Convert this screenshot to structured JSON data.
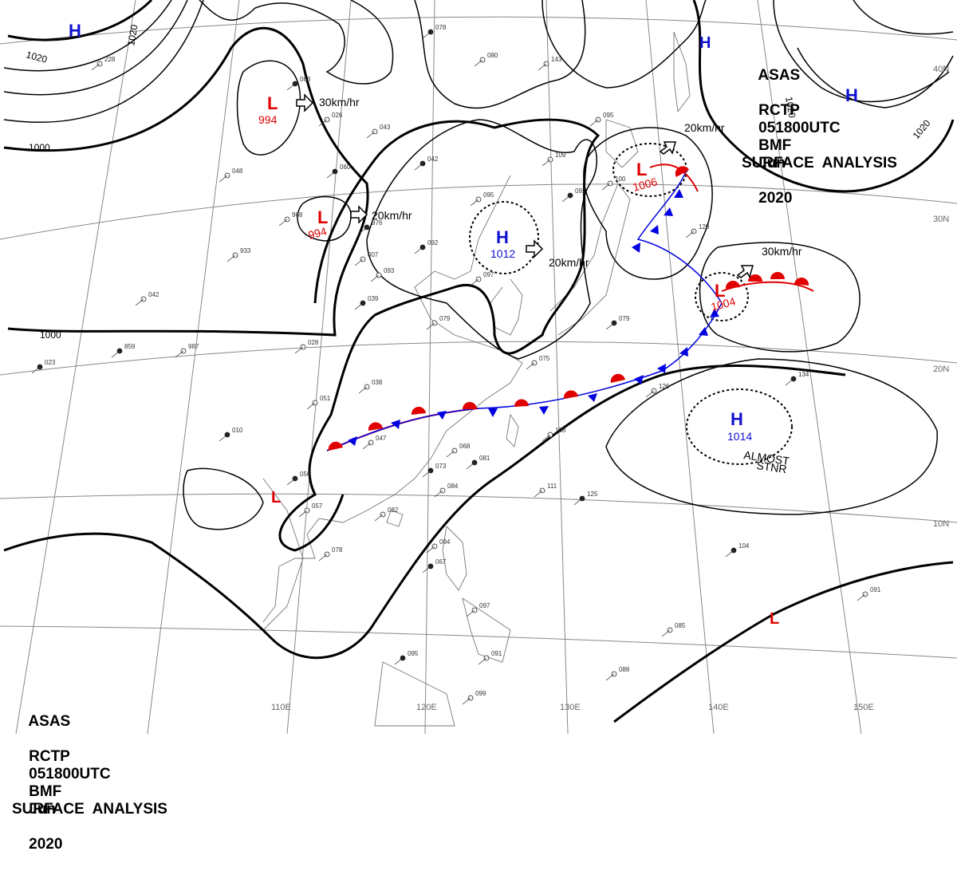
{
  "header": {
    "line1": [
      "ASAS",
      "RCTP",
      "BMF"
    ],
    "line2": [
      "051800UTC",
      "Jun",
      "2020"
    ],
    "line3": "SURFACE  ANALYSIS"
  },
  "colors": {
    "high": "#1010d0",
    "low": "#e00000",
    "isobar": "#000000",
    "grid": "#888888",
    "coast": "#666666",
    "warm_front": "#e00000",
    "cold_front": "#0000e0"
  },
  "pressure_centers": [
    {
      "type": "H",
      "value": ""
    },
    {
      "type": "L",
      "value": "994"
    },
    {
      "type": "L",
      "value": "994"
    },
    {
      "type": "H",
      "value": "1012"
    },
    {
      "type": "L",
      "value": "1006"
    },
    {
      "type": "L",
      "value": "1004"
    },
    {
      "type": "H",
      "value": "1014"
    },
    {
      "type": "H",
      "value": ""
    },
    {
      "type": "H",
      "value": ""
    },
    {
      "type": "L",
      "value": ""
    },
    {
      "type": "L",
      "value": ""
    }
  ],
  "isobar_labels": [
    "1020",
    "1020",
    "1000",
    "1000",
    "1020",
    "1020"
  ],
  "motion": [
    {
      "speed": "30km/hr"
    },
    {
      "speed": "20km/hr"
    },
    {
      "speed": "20km/hr"
    },
    {
      "speed": "20km/hr"
    },
    {
      "speed": "30km/hr"
    }
  ],
  "annotation": {
    "line1": "ALMOST",
    "line2": "STNR"
  },
  "latitude_labels": [
    "40N",
    "30N",
    "20N",
    "10N"
  ],
  "longitude_labels": [
    "110E",
    "120E",
    "130E",
    "140E",
    "150E"
  ],
  "stations": [
    "078",
    "080",
    "228",
    "063",
    "026",
    "048",
    "060",
    "043",
    "095",
    "042",
    "095",
    "109",
    "092",
    "100",
    "968",
    "976",
    "933",
    "007",
    "092",
    "093",
    "097",
    "039",
    "042",
    "079",
    "859",
    "987",
    "028",
    "023",
    "038",
    "051",
    "010",
    "047",
    "068",
    "081",
    "075",
    "108",
    "056",
    "057",
    "082",
    "073",
    "084",
    "111",
    "125",
    "078",
    "094",
    "067",
    "097",
    "091",
    "095",
    "099",
    "088",
    "104",
    "091",
    "120",
    "134",
    "126",
    "085",
    "079",
    "143"
  ]
}
